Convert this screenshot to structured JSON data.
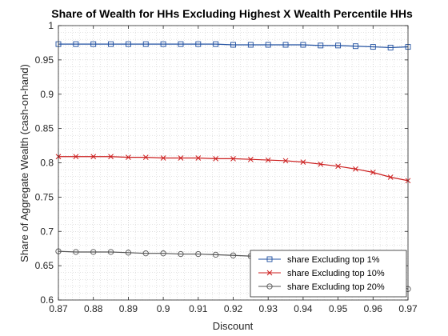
{
  "chart_data": {
    "type": "line",
    "title": "Share of Wealth for HHs Excluding Highest X Wealth Percentile HHs",
    "xlabel": "Discount",
    "ylabel": "Share of Aggregate Wealth (cash-on-hand)",
    "xlim": [
      0.87,
      0.97
    ],
    "ylim": [
      0.6,
      1.0
    ],
    "grid": "on (major and minor, dotted)",
    "legend_position": "bottom-right",
    "x_ticks": [
      "0.87",
      "0.88",
      "0.89",
      "0.9",
      "0.91",
      "0.92",
      "0.93",
      "0.94",
      "0.95",
      "0.96",
      "0.97"
    ],
    "y_ticks": [
      "0.6",
      "0.65",
      "0.7",
      "0.75",
      "0.8",
      "0.85",
      "0.9",
      "0.95",
      "1"
    ],
    "x": [
      0.87,
      0.875,
      0.88,
      0.885,
      0.89,
      0.895,
      0.9,
      0.905,
      0.91,
      0.915,
      0.92,
      0.925,
      0.93,
      0.935,
      0.94,
      0.945,
      0.95,
      0.955,
      0.96,
      0.965,
      0.97
    ],
    "series": [
      {
        "name": "share Excluding top 1%",
        "color": "#1f4fa0",
        "marker": "square",
        "values": [
          0.973,
          0.973,
          0.973,
          0.973,
          0.973,
          0.973,
          0.973,
          0.973,
          0.973,
          0.973,
          0.972,
          0.972,
          0.972,
          0.972,
          0.972,
          0.971,
          0.971,
          0.97,
          0.969,
          0.968,
          0.969
        ]
      },
      {
        "name": "share Excluding top 10%",
        "color": "#cc1f1f",
        "marker": "x",
        "values": [
          0.809,
          0.809,
          0.809,
          0.809,
          0.808,
          0.808,
          0.807,
          0.807,
          0.807,
          0.806,
          0.806,
          0.805,
          0.804,
          0.803,
          0.801,
          0.798,
          0.795,
          0.791,
          0.786,
          0.779,
          0.774
        ]
      },
      {
        "name": "share Excluding top 20%",
        "color": "#555555",
        "marker": "circle",
        "values": [
          0.671,
          0.67,
          0.67,
          0.67,
          0.669,
          0.668,
          0.668,
          0.667,
          0.667,
          0.666,
          0.665,
          0.664,
          0.663,
          0.662,
          0.66,
          0.656,
          0.652,
          0.645,
          0.636,
          0.626,
          0.616
        ]
      }
    ]
  }
}
